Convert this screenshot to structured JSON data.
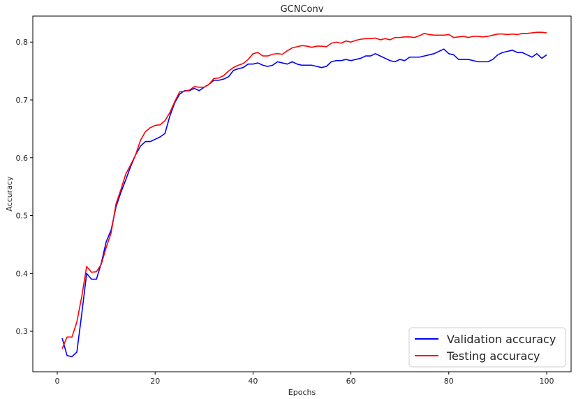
{
  "chart_data": {
    "type": "line",
    "title": "GCNConv",
    "xlabel": "Epochs",
    "ylabel": "Accuracy",
    "xlim": [
      -5,
      105
    ],
    "ylim": [
      0.23,
      0.845
    ],
    "xticks": [
      0,
      20,
      40,
      60,
      80,
      100
    ],
    "yticks": [
      0.3,
      0.4,
      0.5,
      0.6,
      0.7,
      0.8
    ],
    "grid": false,
    "legend_position": "lower-right",
    "x": [
      1,
      2,
      3,
      4,
      5,
      6,
      7,
      8,
      9,
      10,
      11,
      12,
      13,
      14,
      15,
      16,
      17,
      18,
      19,
      20,
      21,
      22,
      23,
      24,
      25,
      26,
      27,
      28,
      29,
      30,
      31,
      32,
      33,
      34,
      35,
      36,
      37,
      38,
      39,
      40,
      41,
      42,
      43,
      44,
      45,
      46,
      47,
      48,
      49,
      50,
      51,
      52,
      53,
      54,
      55,
      56,
      57,
      58,
      59,
      60,
      61,
      62,
      63,
      64,
      65,
      66,
      67,
      68,
      69,
      70,
      71,
      72,
      73,
      74,
      75,
      76,
      77,
      78,
      79,
      80,
      81,
      82,
      83,
      84,
      85,
      86,
      87,
      88,
      89,
      90,
      91,
      92,
      93,
      94,
      95,
      96,
      97,
      98,
      99,
      100
    ],
    "series": [
      {
        "name": "Validation accuracy",
        "color": "#0000ff",
        "values": [
          0.288,
          0.258,
          0.256,
          0.264,
          0.33,
          0.4,
          0.39,
          0.39,
          0.418,
          0.455,
          0.475,
          0.515,
          0.54,
          0.562,
          0.585,
          0.605,
          0.62,
          0.628,
          0.628,
          0.632,
          0.636,
          0.642,
          0.672,
          0.695,
          0.71,
          0.716,
          0.716,
          0.72,
          0.716,
          0.722,
          0.727,
          0.734,
          0.734,
          0.736,
          0.74,
          0.751,
          0.754,
          0.756,
          0.762,
          0.762,
          0.764,
          0.76,
          0.758,
          0.76,
          0.766,
          0.764,
          0.762,
          0.766,
          0.762,
          0.76,
          0.76,
          0.76,
          0.758,
          0.756,
          0.758,
          0.766,
          0.768,
          0.768,
          0.77,
          0.768,
          0.77,
          0.772,
          0.776,
          0.776,
          0.78,
          0.776,
          0.772,
          0.768,
          0.766,
          0.77,
          0.768,
          0.774,
          0.774,
          0.774,
          0.776,
          0.778,
          0.78,
          0.784,
          0.788,
          0.78,
          0.778,
          0.77,
          0.77,
          0.77,
          0.768,
          0.766,
          0.766,
          0.766,
          0.77,
          0.778,
          0.782,
          0.784,
          0.786,
          0.782,
          0.782,
          0.778,
          0.774,
          0.78,
          0.772,
          0.778
        ]
      },
      {
        "name": "Testing accuracy",
        "color": "#ff0000",
        "values": [
          0.27,
          0.29,
          0.29,
          0.316,
          0.36,
          0.412,
          0.402,
          0.403,
          0.416,
          0.445,
          0.47,
          0.52,
          0.545,
          0.572,
          0.588,
          0.605,
          0.63,
          0.645,
          0.652,
          0.656,
          0.657,
          0.664,
          0.678,
          0.697,
          0.714,
          0.715,
          0.717,
          0.723,
          0.722,
          0.722,
          0.727,
          0.737,
          0.738,
          0.742,
          0.75,
          0.756,
          0.76,
          0.763,
          0.77,
          0.78,
          0.782,
          0.776,
          0.776,
          0.779,
          0.78,
          0.779,
          0.785,
          0.79,
          0.792,
          0.794,
          0.793,
          0.791,
          0.793,
          0.793,
          0.792,
          0.798,
          0.8,
          0.798,
          0.802,
          0.8,
          0.803,
          0.805,
          0.806,
          0.806,
          0.807,
          0.804,
          0.806,
          0.804,
          0.808,
          0.808,
          0.809,
          0.809,
          0.808,
          0.811,
          0.815,
          0.813,
          0.812,
          0.812,
          0.812,
          0.813,
          0.808,
          0.809,
          0.81,
          0.808,
          0.81,
          0.81,
          0.809,
          0.81,
          0.812,
          0.814,
          0.814,
          0.813,
          0.814,
          0.813,
          0.815,
          0.815,
          0.816,
          0.817,
          0.817,
          0.816
        ]
      }
    ]
  }
}
